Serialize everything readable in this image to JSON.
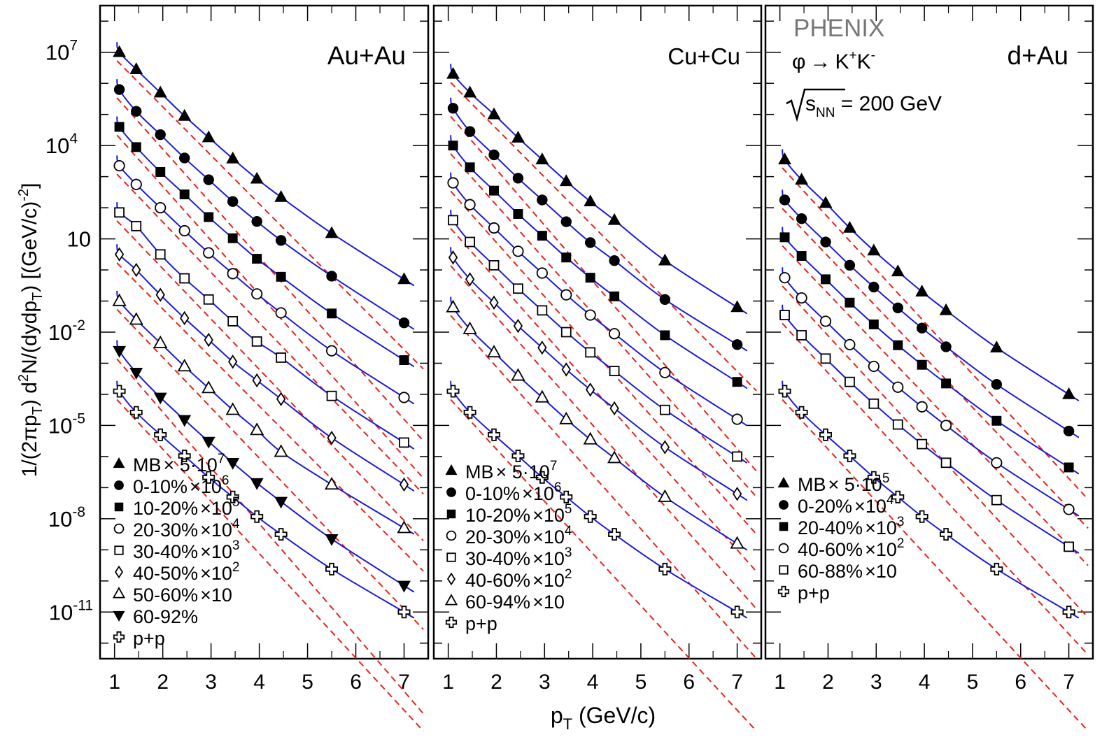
{
  "shared": {
    "ylabel": {
      "a": "1/(2πp",
      "a_sub": "T",
      "b": ") d",
      "b_sup": "2",
      "c": "N/(dydp",
      "c_sub": "T",
      "d": ")   [(GeV/c)",
      "d_sup": "-2",
      "e": "]"
    },
    "xlabel": {
      "main": "p",
      "sub": "T",
      "rest": " (GeV/c)"
    },
    "yticks": [
      {
        "mant": "10",
        "exp": "7"
      },
      {
        "mant": "10",
        "exp": "4"
      },
      {
        "mant": "10",
        "exp": ""
      },
      {
        "mant": "10",
        "exp": "-2"
      },
      {
        "mant": "10",
        "exp": "-5"
      },
      {
        "mant": "10",
        "exp": "-8"
      },
      {
        "mant": "10",
        "exp": "-11"
      }
    ],
    "ytick_exponents": [
      7,
      4,
      1,
      -2,
      -5,
      -8,
      -11
    ],
    "xticks": [
      "1",
      "2",
      "3",
      "4",
      "5",
      "6",
      "7"
    ],
    "header": {
      "experiment": "PHENIX",
      "decay_phi": "φ",
      "decay_arrow": "→",
      "decay_k1": "K",
      "decay_k1_sup": "+",
      "decay_k2": "K",
      "decay_k2_sup": "-",
      "energy_s": "s",
      "energy_sub": "NN",
      "energy_rest": " = 200 GeV"
    },
    "colors": {
      "fit_solid": "#1a1adb",
      "fit_dashed": "#e8231c",
      "marker": "#000000",
      "frame": "#000000"
    }
  },
  "chart_data": [
    {
      "type": "scatter",
      "panel_label": "Au+Au",
      "x_range": [
        0.7,
        7.5
      ],
      "y_log10_range": [
        -12.5,
        8.5
      ],
      "y_scale": "log",
      "grid": false,
      "legend_placement": "bottom-left",
      "x": [
        1.1,
        1.45,
        1.95,
        2.45,
        2.95,
        3.45,
        3.95,
        4.45,
        5.5,
        7.0
      ],
      "series": [
        {
          "name": "MB × 5·10⁷",
          "legend": {
            "label": "MB",
            "times": "×",
            "factor": " 5·10",
            "sup": "7"
          },
          "marker": "triangle-up-filled",
          "y_log10": [
            7.0,
            6.45,
            5.7,
            4.95,
            4.26,
            3.58,
            2.93,
            2.34,
            1.18,
            -0.3
          ]
        },
        {
          "name": "0-10% ×10⁶",
          "legend": {
            "label": "0-10%",
            "times": "×",
            "factor": "10",
            "sup": "6"
          },
          "marker": "circle-filled",
          "y_log10": [
            5.8,
            5.1,
            4.35,
            3.6,
            2.9,
            2.2,
            1.56,
            0.95,
            -0.2,
            -1.7
          ]
        },
        {
          "name": "10-20% ×10⁵",
          "legend": {
            "label": "10-20%",
            "times": "×",
            "factor": "10",
            "sup": "5"
          },
          "marker": "square-filled",
          "y_log10": [
            4.6,
            3.95,
            3.15,
            2.43,
            1.7,
            1.02,
            0.36,
            -0.22,
            -1.4,
            -2.9
          ]
        },
        {
          "name": "20-30% ×10⁴",
          "legend": {
            "label": "20-30%",
            "times": "×",
            "factor": "10",
            "sup": "4"
          },
          "marker": "circle-open",
          "y_log10": [
            3.35,
            2.75,
            2.0,
            1.26,
            0.55,
            -0.12,
            -0.77,
            -1.38,
            -2.6,
            -4.1
          ]
        },
        {
          "name": "30-40% ×10³",
          "legend": {
            "label": "30-40%",
            "times": "×",
            "factor": "10",
            "sup": "3"
          },
          "marker": "square-open",
          "y_log10": [
            1.85,
            1.41,
            0.5,
            -0.27,
            -0.95,
            -1.65,
            -2.3,
            -2.82,
            -4.05,
            -5.55
          ]
        },
        {
          "name": "40-50% ×10²",
          "legend": {
            "label": "40-50%",
            "times": "×",
            "factor": "10",
            "sup": "2"
          },
          "marker": "diamond-open",
          "y_log10": [
            0.5,
            0.0,
            -0.8,
            -1.55,
            -2.25,
            -2.95,
            -3.55,
            -4.15,
            -5.4,
            -6.9
          ]
        },
        {
          "name": "50-60% ×10",
          "legend": {
            "label": "50-60%",
            "times": "×",
            "factor": "10",
            "sup": ""
          },
          "marker": "triangle-up-open",
          "y_log10": [
            -1.0,
            -1.6,
            -2.35,
            -3.1,
            -3.8,
            -4.5,
            -5.15,
            -5.85,
            -6.9,
            -8.3
          ]
        },
        {
          "name": "60-92%",
          "legend": {
            "label": "60-92%",
            "times": "",
            "factor": "",
            "sup": ""
          },
          "marker": "triangle-down-filled",
          "y_log10": [
            -2.6,
            -3.3,
            -4.1,
            -4.82,
            -5.52,
            -6.2,
            -6.85,
            -7.45,
            -8.65,
            -10.15
          ]
        },
        {
          "name": "p+p",
          "legend": {
            "label": "p+p",
            "times": "",
            "factor": "",
            "sup": ""
          },
          "marker": "cross-open",
          "y_log10": [
            -3.9,
            -4.58,
            -5.3,
            -5.98,
            -6.67,
            -7.3,
            -7.93,
            -8.5,
            -9.62,
            -11.0
          ]
        }
      ]
    },
    {
      "type": "scatter",
      "panel_label": "Cu+Cu",
      "x_range": [
        0.7,
        7.5
      ],
      "y_log10_range": [
        -12.5,
        8.5
      ],
      "y_scale": "log",
      "grid": false,
      "legend_placement": "bottom-left",
      "x": [
        1.1,
        1.45,
        1.95,
        2.45,
        2.95,
        3.45,
        3.95,
        4.45,
        5.5,
        7.0
      ],
      "series": [
        {
          "name": "MB × 5·10⁷",
          "legend": {
            "label": "MB",
            "times": "×",
            "factor": " 5·10",
            "sup": "7"
          },
          "marker": "triangle-up-filled",
          "y_log10": [
            6.3,
            5.7,
            5.0,
            4.25,
            3.55,
            2.85,
            2.2,
            1.6,
            0.3,
            -1.2
          ]
        },
        {
          "name": "0-10% ×10⁶",
          "legend": {
            "label": "0-10%",
            "times": "×",
            "factor": "10",
            "sup": "6"
          },
          "marker": "circle-filled",
          "y_log10": [
            5.2,
            4.45,
            3.7,
            2.95,
            2.25,
            1.55,
            0.88,
            0.3,
            -0.95,
            -2.4
          ]
        },
        {
          "name": "10-20% ×10⁵",
          "legend": {
            "label": "10-20%",
            "times": "×",
            "factor": "10",
            "sup": "5"
          },
          "marker": "square-filled",
          "y_log10": [
            4.0,
            3.3,
            2.55,
            1.8,
            1.1,
            0.4,
            -0.25,
            -0.85,
            -2.1,
            -3.6
          ]
        },
        {
          "name": "20-30% ×10⁴",
          "legend": {
            "label": "20-30%",
            "times": "×",
            "factor": "10",
            "sup": "4"
          },
          "marker": "circle-open",
          "y_log10": [
            2.8,
            2.1,
            1.35,
            0.6,
            -0.1,
            -0.8,
            -1.45,
            -2.05,
            -3.3,
            -4.8
          ]
        },
        {
          "name": "30-40% ×10³",
          "legend": {
            "label": "30-40%",
            "times": "×",
            "factor": "10",
            "sup": "3"
          },
          "marker": "square-open",
          "y_log10": [
            1.6,
            0.9,
            0.15,
            -0.6,
            -1.3,
            -2.0,
            -2.65,
            -3.25,
            -4.5,
            -6.0
          ]
        },
        {
          "name": "40-60% ×10²",
          "legend": {
            "label": "40-60%",
            "times": "×",
            "factor": "10",
            "sup": "2"
          },
          "marker": "diamond-open",
          "y_log10": [
            0.4,
            -0.3,
            -1.05,
            -1.8,
            -2.5,
            -3.2,
            -3.85,
            -4.45,
            -5.7,
            -7.2
          ]
        },
        {
          "name": "60-94% ×10",
          "legend": {
            "label": "60-94%",
            "times": "×",
            "factor": "10",
            "sup": ""
          },
          "marker": "triangle-up-open",
          "y_log10": [
            -1.2,
            -1.9,
            -2.65,
            -3.4,
            -4.1,
            -4.8,
            -5.45,
            -6.05,
            -7.3,
            -8.8
          ]
        },
        {
          "name": "p+p",
          "legend": {
            "label": "p+p",
            "times": "",
            "factor": "",
            "sup": ""
          },
          "marker": "cross-open",
          "y_log10": [
            -3.9,
            -4.58,
            -5.3,
            -5.98,
            -6.67,
            -7.3,
            -7.93,
            -8.5,
            -9.62,
            -11.0
          ]
        }
      ]
    },
    {
      "type": "scatter",
      "panel_label": "d+Au",
      "x_range": [
        0.7,
        7.5
      ],
      "y_log10_range": [
        -12.5,
        8.5
      ],
      "y_scale": "log",
      "grid": false,
      "legend_placement": "bottom-left",
      "x": [
        1.1,
        1.45,
        1.95,
        2.45,
        2.95,
        3.45,
        3.95,
        4.45,
        5.5,
        7.0
      ],
      "series": [
        {
          "name": "MB × 5·10⁵",
          "legend": {
            "label": "MB",
            "times": "×",
            "factor": " 5·10",
            "sup": "5"
          },
          "marker": "triangle-up-filled",
          "y_log10": [
            3.55,
            2.9,
            2.15,
            1.35,
            0.62,
            -0.05,
            -0.7,
            -1.3,
            -2.5,
            -4.0
          ]
        },
        {
          "name": "0-20% ×10⁴",
          "legend": {
            "label": "0-20%",
            "times": "×",
            "factor": "10",
            "sup": "4"
          },
          "marker": "circle-filled",
          "y_log10": [
            2.25,
            1.65,
            0.9,
            0.15,
            -0.55,
            -1.22,
            -1.87,
            -2.47,
            -3.68,
            -5.18
          ]
        },
        {
          "name": "20-40% ×10³",
          "legend": {
            "label": "20-40%",
            "times": "×",
            "factor": "10",
            "sup": "3"
          },
          "marker": "square-filled",
          "y_log10": [
            1.05,
            0.45,
            -0.3,
            -1.05,
            -1.75,
            -2.42,
            -3.05,
            -3.65,
            -4.85,
            -6.35
          ]
        },
        {
          "name": "40-60% ×10²",
          "legend": {
            "label": "40-60%",
            "times": "×",
            "factor": "10",
            "sup": "2"
          },
          "marker": "circle-open",
          "y_log10": [
            -0.25,
            -0.9,
            -1.65,
            -2.4,
            -3.1,
            -3.77,
            -4.4,
            -5.0,
            -6.2,
            -7.7
          ]
        },
        {
          "name": "60-88% ×10",
          "legend": {
            "label": "60-88%",
            "times": "×",
            "factor": "10",
            "sup": ""
          },
          "marker": "square-open",
          "y_log10": [
            -1.45,
            -2.1,
            -2.85,
            -3.6,
            -4.3,
            -4.97,
            -5.6,
            -6.2,
            -7.4,
            -8.9
          ]
        },
        {
          "name": "p+p",
          "legend": {
            "label": "p+p",
            "times": "",
            "factor": "",
            "sup": ""
          },
          "marker": "cross-open",
          "y_log10": [
            -3.9,
            -4.58,
            -5.3,
            -5.98,
            -6.67,
            -7.3,
            -7.93,
            -8.5,
            -9.62,
            -11.0
          ]
        }
      ]
    }
  ]
}
